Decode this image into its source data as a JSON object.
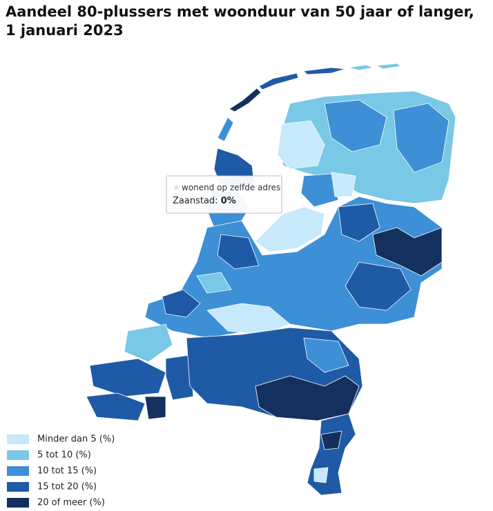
{
  "title": "Aandeel 80-plussers met woonduur van 50 jaar of langer, 1 januari 2023",
  "tooltip": {
    "label": "wonend op zelfde adres",
    "region": "Zaanstad:",
    "value": "0%",
    "color": "#c6e9fb"
  },
  "legend": [
    {
      "label": "Minder dan 5 (%)",
      "color": "#c6e9fb"
    },
    {
      "label": "5 tot 10 (%)",
      "color": "#78c8e6"
    },
    {
      "label": "10 tot 15 (%)",
      "color": "#3d8fd6"
    },
    {
      "label": "15 tot 20 (%)",
      "color": "#1f5aa6"
    },
    {
      "label": "20 of meer (%)",
      "color": "#13305e"
    }
  ]
}
